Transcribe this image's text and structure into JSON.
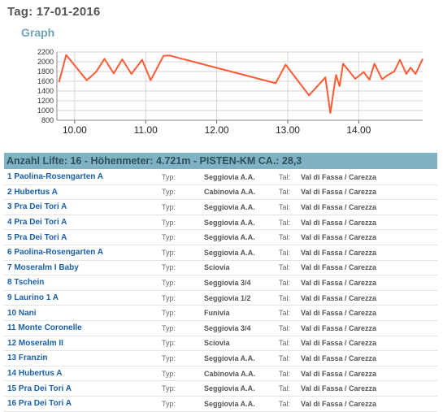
{
  "header": {
    "title": "Tag: 17-01-2016",
    "graph_label": "Graph"
  },
  "chart_data": {
    "type": "line",
    "color": "#ff5a33",
    "ylim": [
      800,
      2200
    ],
    "yticks": [
      800,
      1000,
      1200,
      1400,
      1600,
      1800,
      2000,
      2200
    ],
    "xlim": [
      9.75,
      14.9
    ],
    "xticks": [
      10.0,
      11.0,
      12.0,
      13.0,
      14.0
    ],
    "xtick_labels": [
      "10.00",
      "11.00",
      "12.00",
      "13.00",
      "14.00"
    ],
    "grid": true,
    "x": [
      9.78,
      9.88,
      10.17,
      10.3,
      10.42,
      10.55,
      10.67,
      10.8,
      10.95,
      11.07,
      11.25,
      11.33,
      12.83,
      12.97,
      13.3,
      13.53,
      13.6,
      13.68,
      13.73,
      13.78,
      13.95,
      14.07,
      14.15,
      14.22,
      14.33,
      14.4,
      14.5,
      14.58,
      14.67,
      14.73,
      14.8,
      14.9
    ],
    "y": [
      1580,
      2140,
      1620,
      1790,
      2060,
      1760,
      2050,
      1750,
      2040,
      1620,
      2120,
      2130,
      1560,
      1940,
      1310,
      1680,
      950,
      1730,
      1500,
      1960,
      1650,
      1790,
      1630,
      1960,
      1640,
      1720,
      1800,
      2040,
      1750,
      1880,
      1750,
      2060
    ]
  },
  "summary": "Anzahl Lifte: 16 - Höhenmeter: 4.721m - PISTEN-KM CA.: 28,3",
  "table": {
    "typ_label": "Typ:",
    "tal_label": "Tal:",
    "rows": [
      {
        "name": "1 Paolina-Rosengarten A",
        "typ": "Seggiovia A.A.",
        "tal": "Val di Fassa / Carezza"
      },
      {
        "name": "2 Hubertus A",
        "typ": "Cabinovia A.A.",
        "tal": "Val di Fassa / Carezza"
      },
      {
        "name": "3 Pra Dei Tori A",
        "typ": "Seggiovia A.A.",
        "tal": "Val di Fassa / Carezza"
      },
      {
        "name": "4 Pra Dei Tori A",
        "typ": "Seggiovia A.A.",
        "tal": "Val di Fassa / Carezza"
      },
      {
        "name": "5 Pra Dei Tori A",
        "typ": "Seggiovia A.A.",
        "tal": "Val di Fassa / Carezza"
      },
      {
        "name": "6 Paolina-Rosengarten A",
        "typ": "Seggiovia A.A.",
        "tal": "Val di Fassa / Carezza"
      },
      {
        "name": "7 Moseralm I Baby",
        "typ": "Sciovia",
        "tal": "Val di Fassa / Carezza"
      },
      {
        "name": "8 Tschein",
        "typ": "Seggiovia 3/4",
        "tal": "Val di Fassa / Carezza"
      },
      {
        "name": "9 Laurino 1 A",
        "typ": "Seggiovia 1/2",
        "tal": "Val di Fassa / Carezza"
      },
      {
        "name": "10 Nani",
        "typ": "Funivia",
        "tal": "Val di Fassa / Carezza"
      },
      {
        "name": "11 Monte Coronelle",
        "typ": "Seggiovia 3/4",
        "tal": "Val di Fassa / Carezza"
      },
      {
        "name": "12 Moseralm II",
        "typ": "Sciovia",
        "tal": "Val di Fassa / Carezza"
      },
      {
        "name": "13 Franzin",
        "typ": "Seggiovia A.A.",
        "tal": "Val di Fassa / Carezza"
      },
      {
        "name": "14 Hubertus A",
        "typ": "Cabinovia A.A.",
        "tal": "Val di Fassa / Carezza"
      },
      {
        "name": "15 Pra Dei Tori A",
        "typ": "Seggiovia A.A.",
        "tal": "Val di Fassa / Carezza"
      },
      {
        "name": "16 Pra Dei Tori A",
        "typ": "Seggiovia A.A.",
        "tal": "Val di Fassa / Carezza"
      }
    ]
  }
}
